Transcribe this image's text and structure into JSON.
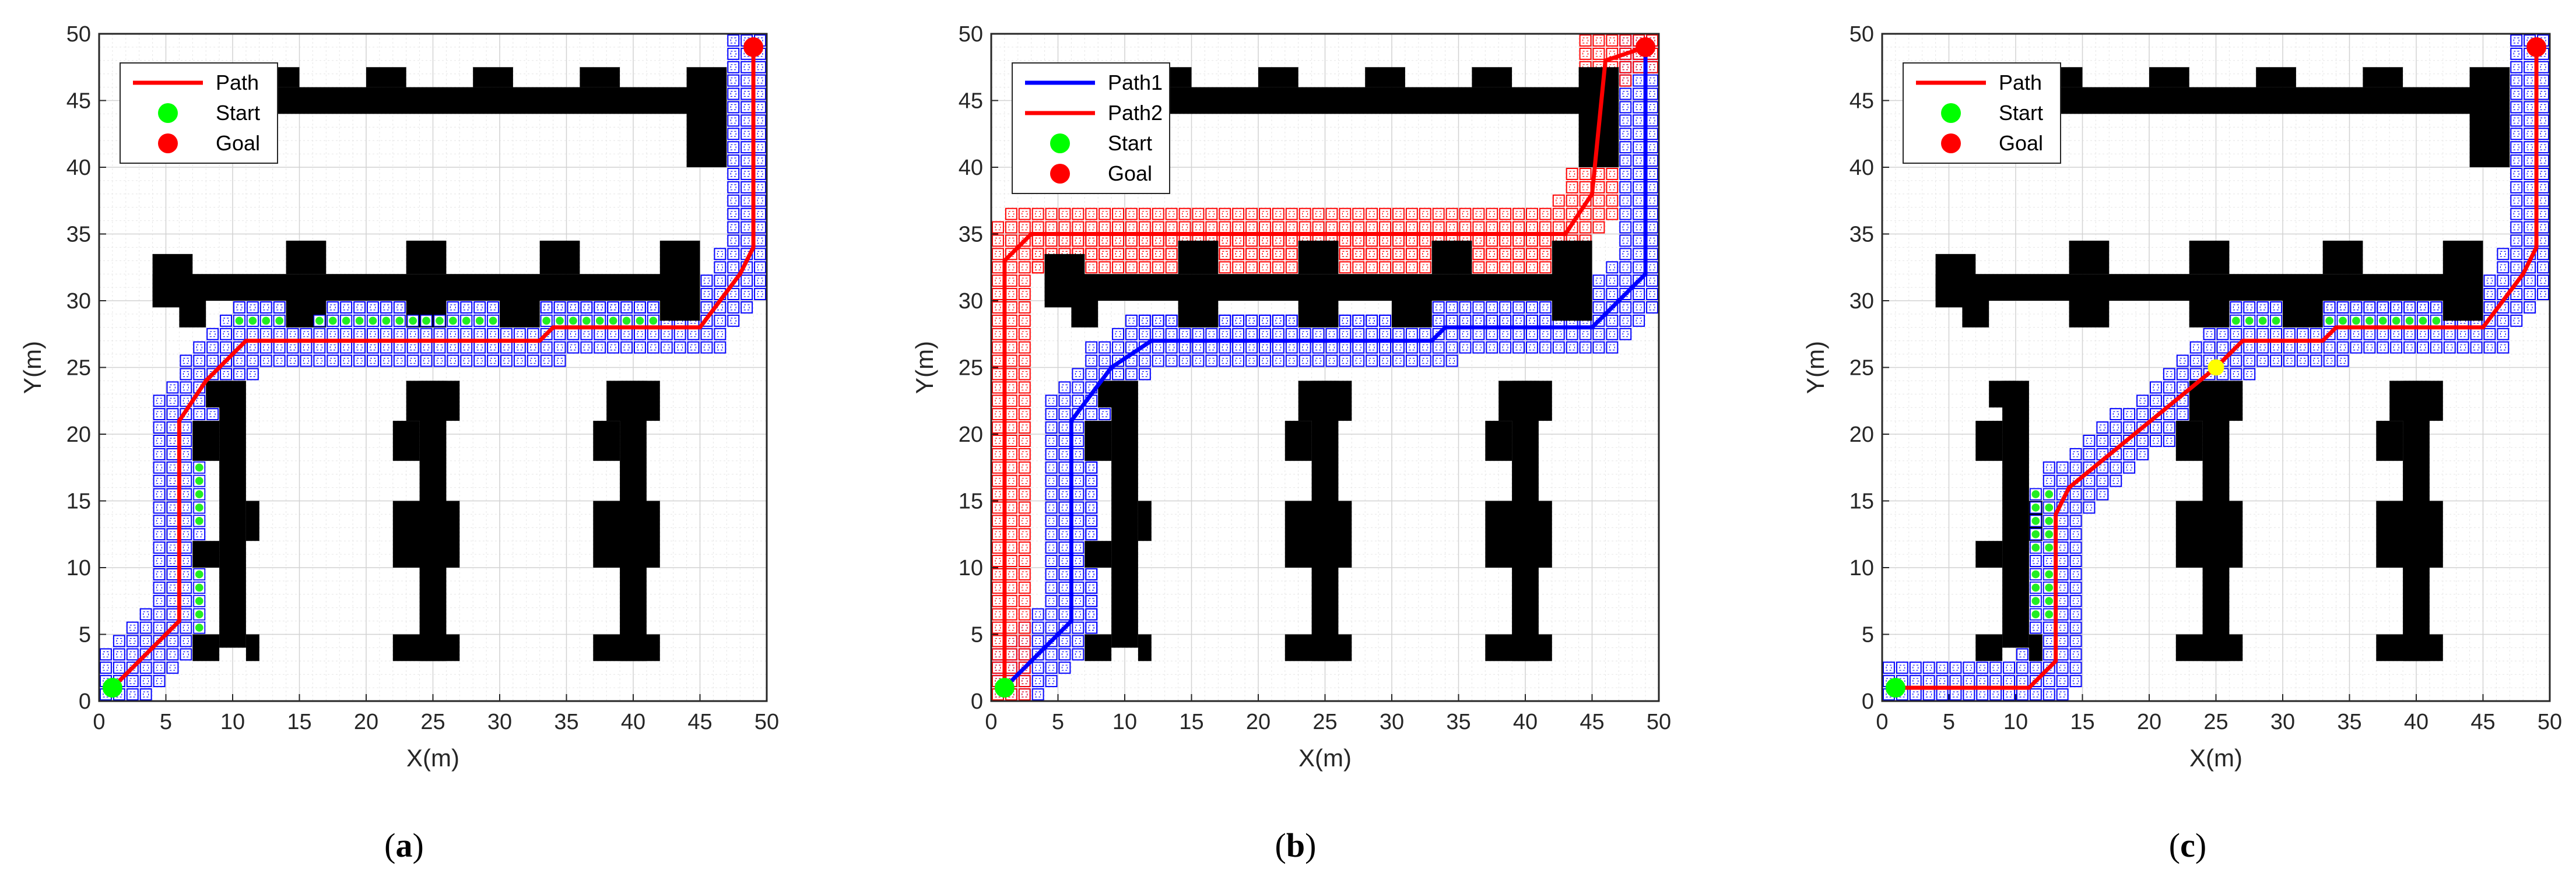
{
  "chart_data": [
    {
      "type": "line",
      "panel_label": "a",
      "xlabel": "X(m)",
      "ylabel": "Y(m)",
      "xlim": [
        0,
        50
      ],
      "ylim": [
        0,
        50
      ],
      "xticks": [
        0,
        5,
        10,
        15,
        20,
        25,
        30,
        35,
        40,
        45,
        50
      ],
      "yticks": [
        0,
        5,
        10,
        15,
        20,
        25,
        30,
        35,
        40,
        45,
        50
      ],
      "grid": true,
      "legend_position": "top-left",
      "legend": [
        {
          "label": "Path",
          "kind": "line",
          "color": "#ff0000"
        },
        {
          "label": "Start",
          "kind": "marker",
          "color": "#00ff00"
        },
        {
          "label": "Goal",
          "kind": "marker",
          "color": "#ff0000"
        }
      ],
      "series": [
        {
          "name": "Path",
          "color": "#ff0000",
          "x": [
            1,
            6,
            6,
            8,
            11,
            33,
            34,
            45,
            48,
            49,
            49
          ],
          "y": [
            1,
            6,
            21,
            24,
            27,
            27,
            28,
            28,
            32,
            34,
            49
          ]
        }
      ],
      "search_cells": [
        {
          "color": "#0000ff",
          "x": [
            1,
            6,
            6,
            8,
            11,
            33,
            34,
            45,
            48,
            49,
            49
          ],
          "y": [
            1,
            6,
            21,
            24,
            27,
            27,
            28,
            28,
            32,
            34,
            49
          ],
          "halfwidth": 1.5
        },
        {
          "color": "#0000ff",
          "x": [
            11,
            41
          ],
          "y": [
            29,
            29
          ],
          "halfwidth": 1
        }
      ],
      "green_cells": [
        {
          "x": [
            11,
            13
          ],
          "y": [
            28.5,
            28.5
          ],
          "halfwidth": 0.6
        },
        {
          "x": [
            17,
            29
          ],
          "y": [
            28.5,
            28.5
          ],
          "halfwidth": 0.6
        },
        {
          "x": [
            34,
            41
          ],
          "y": [
            28.5,
            28.5
          ],
          "halfwidth": 0.6
        },
        {
          "x": [
            7.5,
            7.5
          ],
          "y": [
            14,
            17.5
          ],
          "halfwidth": 0.6
        },
        {
          "x": [
            7.5,
            7.5
          ],
          "y": [
            6,
            9.5
          ],
          "halfwidth": 0.6
        }
      ],
      "start": [
        1,
        1
      ],
      "goal": [
        49,
        49
      ]
    },
    {
      "type": "line",
      "panel_label": "b",
      "xlabel": "X(m)",
      "ylabel": "Y(m)",
      "xlim": [
        0,
        50
      ],
      "ylim": [
        0,
        50
      ],
      "xticks": [
        0,
        5,
        10,
        15,
        20,
        25,
        30,
        35,
        40,
        45,
        50
      ],
      "yticks": [
        0,
        5,
        10,
        15,
        20,
        25,
        30,
        35,
        40,
        45,
        50
      ],
      "grid": true,
      "legend_position": "top-left",
      "legend": [
        {
          "label": "Path1",
          "kind": "line",
          "color": "#0000ff"
        },
        {
          "label": "Path2",
          "kind": "line",
          "color": "#ff0000"
        },
        {
          "label": "Start",
          "kind": "marker",
          "color": "#00ff00"
        },
        {
          "label": "Goal",
          "kind": "marker",
          "color": "#ff0000"
        }
      ],
      "series": [
        {
          "name": "Path1",
          "color": "#0000ff",
          "x": [
            1,
            6,
            6,
            9,
            12,
            33,
            34,
            45,
            49,
            49
          ],
          "y": [
            1,
            6,
            21,
            25,
            27,
            27,
            28,
            28,
            32,
            49
          ]
        },
        {
          "name": "Path2",
          "color": "#ff0000",
          "x": [
            1,
            1,
            3,
            4,
            43,
            45,
            46,
            49
          ],
          "y": [
            1,
            33,
            35,
            35,
            35,
            38,
            48,
            49
          ]
        }
      ],
      "search_cells": [
        {
          "color": "#0000ff",
          "x": [
            1,
            6,
            6,
            9,
            12,
            33,
            34,
            45,
            49,
            49
          ],
          "y": [
            1,
            6,
            21,
            25,
            27,
            27,
            28,
            28,
            32,
            49
          ],
          "halfwidth": 1.5
        },
        {
          "color": "#0000ff",
          "x": [
            12,
            41
          ],
          "y": [
            28.5,
            28.5
          ],
          "halfwidth": 0.8
        },
        {
          "color": "#0000ff",
          "x": [
            7.5,
            7.5
          ],
          "y": [
            6,
            17
          ],
          "halfwidth": 0.8
        },
        {
          "color": "#ff0000",
          "x": [
            1,
            1,
            3,
            4,
            43,
            45,
            46,
            49
          ],
          "y": [
            1,
            33,
            35,
            35,
            35,
            38,
            48,
            49
          ],
          "halfwidth": 1.5
        },
        {
          "color": "#ff0000",
          "x": [
            4,
            44
          ],
          "y": [
            33.5,
            33.5
          ],
          "halfwidth": 1.2
        }
      ],
      "start": [
        1,
        1
      ],
      "goal": [
        49,
        49
      ]
    },
    {
      "type": "line",
      "panel_label": "c",
      "xlabel": "X(m)",
      "ylabel": "Y(m)",
      "xlim": [
        0,
        50
      ],
      "ylim": [
        0,
        50
      ],
      "xticks": [
        0,
        5,
        10,
        15,
        20,
        25,
        30,
        35,
        40,
        45,
        50
      ],
      "yticks": [
        0,
        5,
        10,
        15,
        20,
        25,
        30,
        35,
        40,
        45,
        50
      ],
      "grid": true,
      "legend_position": "top-left",
      "legend": [
        {
          "label": "Path",
          "kind": "line",
          "color": "#ff0000"
        },
        {
          "label": "Start",
          "kind": "marker",
          "color": "#00ff00"
        },
        {
          "label": "Goal",
          "kind": "marker",
          "color": "#ff0000"
        }
      ],
      "series": [
        {
          "name": "Path",
          "color": "#ff0000",
          "x": [
            1,
            11,
            13,
            13,
            14,
            25,
            27,
            33,
            34,
            45,
            48,
            49,
            49
          ],
          "y": [
            1,
            1,
            3,
            14,
            16,
            25,
            27,
            27,
            28,
            28,
            32,
            34,
            49
          ]
        }
      ],
      "search_cells": [
        {
          "color": "#0000ff",
          "x": [
            1,
            11,
            13,
            13,
            14,
            25,
            27,
            33,
            34,
            45,
            48,
            49,
            49
          ],
          "y": [
            1,
            1,
            3,
            14,
            16,
            25,
            27,
            27,
            28,
            28,
            32,
            34,
            49
          ],
          "halfwidth": 1.5
        },
        {
          "color": "#0000ff",
          "x": [
            26,
            42
          ],
          "y": [
            29,
            29
          ],
          "halfwidth": 1
        }
      ],
      "green_cells": [
        {
          "x": [
            27,
            29
          ],
          "y": [
            28.5,
            28.5
          ],
          "halfwidth": 0.6
        },
        {
          "x": [
            34,
            41
          ],
          "y": [
            28.5,
            28.5
          ],
          "halfwidth": 0.6
        },
        {
          "x": [
            12,
            12
          ],
          "y": [
            7,
            9
          ],
          "halfwidth": 0.6
        },
        {
          "x": [
            12,
            12
          ],
          "y": [
            12,
            15
          ],
          "halfwidth": 0.6
        }
      ],
      "midpoint": {
        "x": 25,
        "y": 25,
        "color": "#ffff00"
      },
      "start": [
        1,
        1
      ],
      "goal": [
        49,
        49
      ]
    }
  ],
  "obstacles": [
    {
      "x1": 10,
      "x2": 45,
      "y1": 44,
      "y2": 46
    },
    {
      "x1": 12,
      "x2": 15,
      "y1": 46,
      "y2": 47.5
    },
    {
      "x1": 20,
      "x2": 23,
      "y1": 46,
      "y2": 47.5
    },
    {
      "x1": 28,
      "x2": 31,
      "y1": 46,
      "y2": 47.5
    },
    {
      "x1": 36,
      "x2": 39,
      "y1": 46,
      "y2": 47.5
    },
    {
      "x1": 44,
      "x2": 47,
      "y1": 40,
      "y2": 47.5
    },
    {
      "x1": 4,
      "x2": 45,
      "y1": 30,
      "y2": 32
    },
    {
      "x1": 4,
      "x2": 7,
      "y1": 29.5,
      "y2": 33.5
    },
    {
      "x1": 6,
      "x2": 8,
      "y1": 28,
      "y2": 30
    },
    {
      "x1": 14,
      "x2": 17,
      "y1": 32,
      "y2": 34.5
    },
    {
      "x1": 14,
      "x2": 17,
      "y1": 28,
      "y2": 30
    },
    {
      "x1": 23,
      "x2": 26,
      "y1": 32,
      "y2": 34.5
    },
    {
      "x1": 23,
      "x2": 26,
      "y1": 28,
      "y2": 30
    },
    {
      "x1": 33,
      "x2": 36,
      "y1": 32,
      "y2": 34.5
    },
    {
      "x1": 30,
      "x2": 33,
      "y1": 28,
      "y2": 30
    },
    {
      "x1": 42,
      "x2": 45,
      "y1": 28.5,
      "y2": 34.5
    },
    {
      "x1": 9,
      "x2": 11,
      "y1": 4,
      "y2": 24
    },
    {
      "x1": 7,
      "x2": 9,
      "y1": 3,
      "y2": 5
    },
    {
      "x1": 11,
      "x2": 12,
      "y1": 3,
      "y2": 5
    },
    {
      "x1": 7,
      "x2": 9,
      "y1": 18,
      "y2": 21
    },
    {
      "x1": 11,
      "x2": 12,
      "y1": 12,
      "y2": 15
    },
    {
      "x1": 7,
      "x2": 9,
      "y1": 10,
      "y2": 12
    },
    {
      "x1": 8,
      "x2": 10,
      "y1": 22,
      "y2": 24
    },
    {
      "x1": 24,
      "x2": 26,
      "y1": 3,
      "y2": 24
    },
    {
      "x1": 22,
      "x2": 24,
      "y1": 18,
      "y2": 21
    },
    {
      "x1": 22,
      "x2": 27,
      "y1": 10,
      "y2": 15
    },
    {
      "x1": 22,
      "x2": 27,
      "y1": 3,
      "y2": 5
    },
    {
      "x1": 23,
      "x2": 27,
      "y1": 21,
      "y2": 24
    },
    {
      "x1": 39,
      "x2": 41,
      "y1": 3,
      "y2": 24
    },
    {
      "x1": 37,
      "x2": 39,
      "y1": 18,
      "y2": 21
    },
    {
      "x1": 37,
      "x2": 42,
      "y1": 10,
      "y2": 15
    },
    {
      "x1": 37,
      "x2": 42,
      "y1": 3,
      "y2": 5
    },
    {
      "x1": 38,
      "x2": 42,
      "y1": 21,
      "y2": 24
    }
  ],
  "captions": [
    "a",
    "b",
    "c"
  ]
}
